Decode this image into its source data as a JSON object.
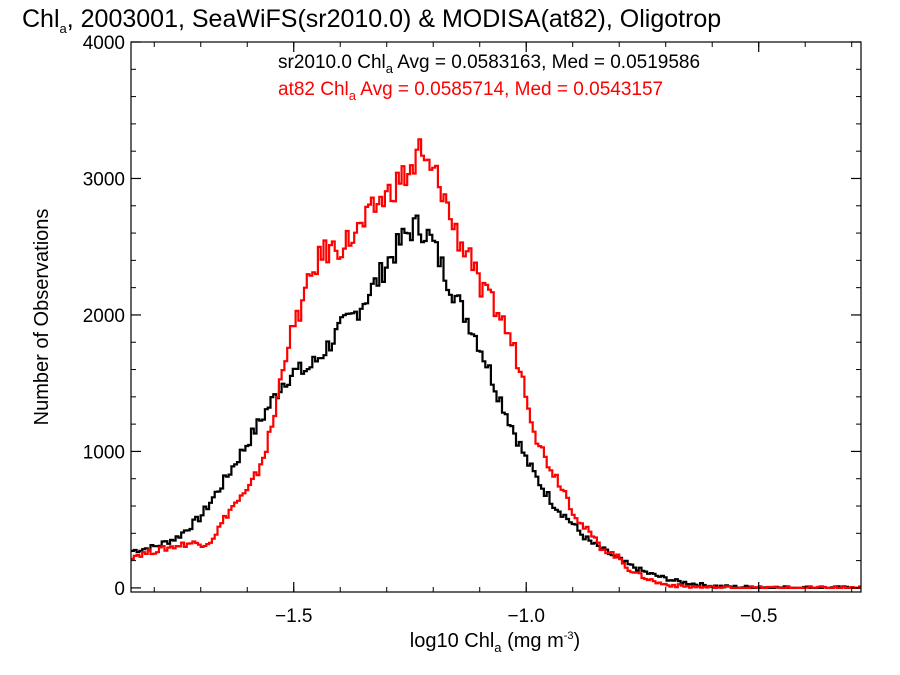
{
  "chart_data": {
    "type": "line",
    "title": {
      "prefix": "Chl",
      "sub": "a",
      "rest": ", 2003001, SeaWiFS(sr2010.0) & MODISA(at82), Oligotrop"
    },
    "xlabel": {
      "prefix": "log10 Chl",
      "sub": "a",
      "mid": " (mg m",
      "sup": "-3",
      "suffix": ")"
    },
    "ylabel": "Number of Observations",
    "xlim": [
      -1.85,
      -0.28
    ],
    "ylim": [
      -30,
      4000
    ],
    "xticks": [
      -1.5,
      -1.0,
      -0.5
    ],
    "xtick_labels": [
      "−1.5",
      "−1.0",
      "−0.5"
    ],
    "yticks": [
      0,
      1000,
      2000,
      3000,
      4000
    ],
    "ytick_labels": [
      "0",
      "1000",
      "2000",
      "3000",
      "4000"
    ],
    "annotations": [
      {
        "prefix": "sr2010.0 Chl",
        "sub": "a",
        "rest": " Avg = 0.0583163, Med = 0.0519586",
        "color": "#000000"
      },
      {
        "prefix": "at82 Chl",
        "sub": "a",
        "rest": " Avg = 0.0585714, Med = 0.0543157",
        "color": "#ff0000"
      }
    ],
    "series": [
      {
        "color": "#000000",
        "x": [
          -1.85,
          -1.8,
          -1.75,
          -1.7,
          -1.65,
          -1.6,
          -1.55,
          -1.52,
          -1.5,
          -1.47,
          -1.45,
          -1.42,
          -1.4,
          -1.37,
          -1.35,
          -1.32,
          -1.3,
          -1.28,
          -1.26,
          -1.24,
          -1.22,
          -1.2,
          -1.18,
          -1.16,
          -1.14,
          -1.12,
          -1.1,
          -1.08,
          -1.06,
          -1.04,
          -1.02,
          -1.0,
          -0.98,
          -0.96,
          -0.94,
          -0.92,
          -0.9,
          -0.88,
          -0.86,
          -0.84,
          -0.82,
          -0.8,
          -0.78,
          -0.76,
          -0.74,
          -0.72,
          -0.7,
          -0.68,
          -0.66,
          -0.64,
          -0.62,
          -0.6,
          -0.58,
          -0.55,
          -0.5,
          -0.45,
          -0.4,
          -0.35,
          -0.28
        ],
        "values": [
          270,
          300,
          370,
          520,
          780,
          1060,
          1350,
          1520,
          1580,
          1600,
          1670,
          1800,
          1900,
          2000,
          2100,
          2250,
          2380,
          2480,
          2580,
          2650,
          2630,
          2520,
          2350,
          2200,
          2050,
          1930,
          1780,
          1600,
          1420,
          1260,
          1100,
          940,
          820,
          710,
          610,
          540,
          470,
          390,
          330,
          290,
          250,
          210,
          170,
          140,
          110,
          90,
          70,
          52,
          40,
          30,
          22,
          15,
          10,
          7,
          4,
          2,
          1,
          1,
          0
        ]
      },
      {
        "color": "#ff0000",
        "x": [
          -1.85,
          -1.8,
          -1.75,
          -1.72,
          -1.7,
          -1.68,
          -1.66,
          -1.64,
          -1.62,
          -1.6,
          -1.58,
          -1.56,
          -1.54,
          -1.52,
          -1.5,
          -1.48,
          -1.46,
          -1.44,
          -1.42,
          -1.4,
          -1.38,
          -1.36,
          -1.34,
          -1.32,
          -1.3,
          -1.28,
          -1.26,
          -1.24,
          -1.23,
          -1.22,
          -1.2,
          -1.18,
          -1.16,
          -1.14,
          -1.12,
          -1.1,
          -1.08,
          -1.06,
          -1.04,
          -1.02,
          -1.0,
          -0.98,
          -0.96,
          -0.94,
          -0.92,
          -0.9,
          -0.88,
          -0.86,
          -0.84,
          -0.82,
          -0.8,
          -0.78,
          -0.76,
          -0.74,
          -0.72,
          -0.7,
          -0.68,
          -0.66,
          -0.64,
          -0.62,
          -0.6,
          -0.55,
          -0.5,
          -0.45,
          -0.4,
          -0.28
        ],
        "values": [
          230,
          270,
          310,
          330,
          320,
          340,
          440,
          560,
          640,
          700,
          830,
          1010,
          1280,
          1700,
          1900,
          2100,
          2300,
          2450,
          2480,
          2500,
          2550,
          2620,
          2700,
          2820,
          2870,
          2960,
          3020,
          3080,
          3220,
          3100,
          3050,
          2920,
          2680,
          2520,
          2460,
          2180,
          2120,
          2020,
          1880,
          1690,
          1440,
          1130,
          960,
          840,
          730,
          570,
          460,
          390,
          300,
          260,
          220,
          140,
          100,
          70,
          40,
          25,
          18,
          12,
          8,
          5,
          3,
          2,
          1,
          1,
          0,
          0
        ]
      }
    ]
  }
}
